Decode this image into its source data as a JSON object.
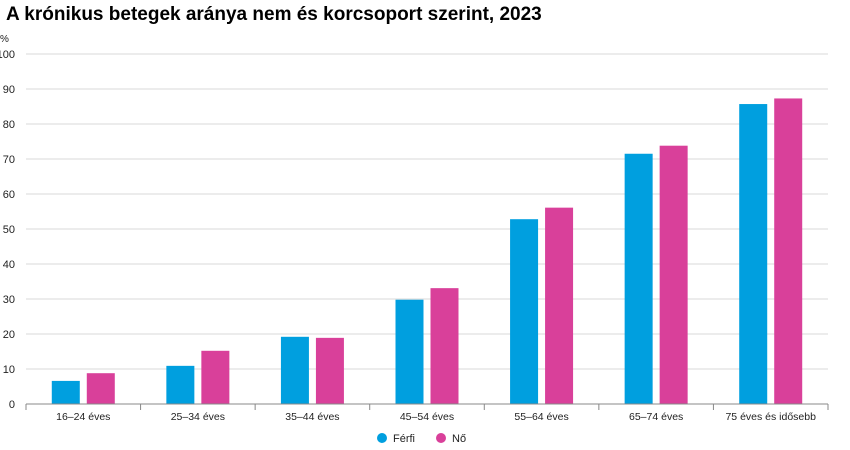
{
  "chart_data": {
    "type": "bar",
    "title": "A krónikus betegek aránya nem és korcsoport szerint, 2023",
    "ylabel": "%",
    "xlabel": "",
    "ylim": [
      0,
      100
    ],
    "yticks": [
      0,
      10,
      20,
      30,
      40,
      50,
      60,
      70,
      80,
      90,
      100
    ],
    "grid": true,
    "legend_position": "bottom-center",
    "categories": [
      "16–24 éves",
      "25–34 éves",
      "35–44 éves",
      "45–54 éves",
      "55–64 éves",
      "65–74 éves",
      "75 éves és idősebb"
    ],
    "series": [
      {
        "name": "Férfi",
        "color": "#009fdf",
        "values": [
          6.6,
          10.9,
          19.2,
          29.8,
          52.8,
          71.5,
          85.7
        ]
      },
      {
        "name": "Nő",
        "color": "#d9409a",
        "values": [
          8.8,
          15.2,
          18.9,
          33.1,
          56.1,
          73.8,
          87.3
        ]
      }
    ]
  }
}
